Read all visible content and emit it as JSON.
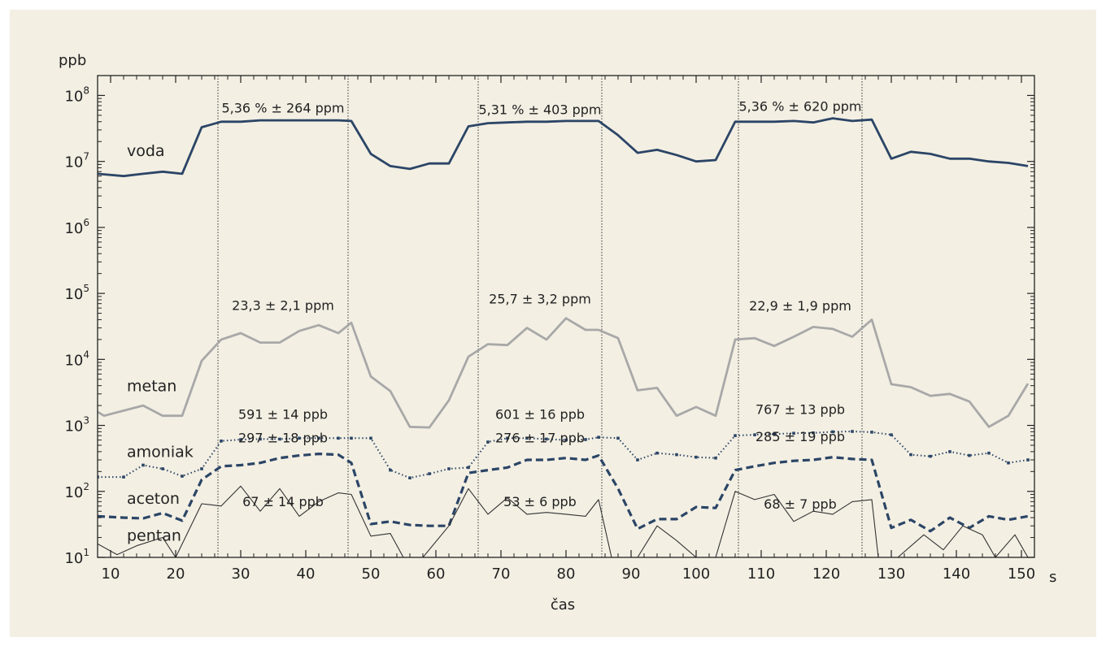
{
  "chart_data": {
    "type": "line",
    "title": "",
    "xlabel": "čas",
    "xunit": "s",
    "ylabel": "ppb",
    "yscale": "log",
    "xlim": [
      8,
      152
    ],
    "ylim": [
      10,
      200000000
    ],
    "xticks": [
      10,
      20,
      30,
      40,
      50,
      60,
      70,
      80,
      90,
      100,
      110,
      120,
      130,
      140,
      150
    ],
    "yticks": [
      {
        "value": 10,
        "base": "10",
        "exp": "1"
      },
      {
        "value": 100,
        "base": "10",
        "exp": "2"
      },
      {
        "value": 1000,
        "base": "10",
        "exp": "3"
      },
      {
        "value": 10000,
        "base": "10",
        "exp": "4"
      },
      {
        "value": 100000,
        "base": "10",
        "exp": "5"
      },
      {
        "value": 1000000,
        "base": "10",
        "exp": "6"
      },
      {
        "value": 10000000,
        "base": "10",
        "exp": "7"
      },
      {
        "value": 100000000,
        "base": "10",
        "exp": "8"
      }
    ],
    "grid": false,
    "vlines": [
      26.5,
      46.5,
      66.5,
      85.5,
      106.5,
      125.5
    ],
    "series": [
      {
        "name": "voda",
        "color": "#2b4566",
        "style": "solid-thick",
        "label_x": 11,
        "label_y": 12000000,
        "x": [
          8,
          12,
          15,
          18,
          21,
          24,
          27,
          30,
          33,
          36,
          39,
          42,
          45,
          47,
          50,
          53,
          56,
          59,
          62,
          65,
          68,
          71,
          74,
          77,
          80,
          83,
          85,
          88,
          91,
          94,
          97,
          100,
          103,
          106,
          109,
          112,
          115,
          118,
          121,
          124,
          127,
          130,
          133,
          136,
          139,
          142,
          145,
          148,
          151
        ],
        "y": [
          6500000,
          6000000,
          6500000,
          7000000,
          6500000,
          33000000,
          40000000,
          40000000,
          42000000,
          42000000,
          42000000,
          42000000,
          42000000,
          41000000,
          13000000,
          8500000,
          7700000,
          9300000,
          9300000,
          34000000,
          38000000,
          39000000,
          40000000,
          40000000,
          41000000,
          41000000,
          41000000,
          25000000,
          13500000,
          15000000,
          12500000,
          10000000,
          10500000,
          40000000,
          40000000,
          40000000,
          41000000,
          39000000,
          45000000,
          41000000,
          43000000,
          11000000,
          14000000,
          13000000,
          11000000,
          11000000,
          10000000,
          9500000,
          8500000
        ]
      },
      {
        "name": "metan",
        "color": "#a8a8a8",
        "style": "solid-gray",
        "label_x": 11,
        "label_y": 3300,
        "x": [
          8,
          9,
          15,
          18,
          21,
          24,
          27,
          30,
          33,
          36,
          39,
          42,
          45,
          47,
          50,
          53,
          56,
          59,
          62,
          65,
          68,
          71,
          74,
          77,
          80,
          83,
          85,
          88,
          91,
          94,
          97,
          100,
          103,
          106,
          109,
          112,
          115,
          118,
          121,
          124,
          127,
          130,
          133,
          136,
          139,
          142,
          145,
          148,
          151
        ],
        "y": [
          1600,
          1400,
          2000,
          1400,
          1400,
          9500,
          20000,
          25000,
          18000,
          18000,
          27000,
          33000,
          25000,
          36000,
          5500,
          3300,
          950,
          930,
          2400,
          11000,
          17000,
          16500,
          30000,
          20000,
          42000,
          28000,
          28000,
          21000,
          3400,
          3700,
          1400,
          1900,
          1400,
          20000,
          21000,
          16000,
          22000,
          31000,
          29000,
          22000,
          40000,
          4200,
          3800,
          2800,
          3000,
          2300,
          950,
          1400,
          4300
        ]
      },
      {
        "name": "amoniak",
        "color": "#2b4566",
        "style": "dotted",
        "label_x": 11,
        "label_y": 330,
        "x": [
          8,
          12,
          15,
          18,
          21,
          24,
          27,
          30,
          33,
          36,
          39,
          42,
          45,
          47,
          50,
          53,
          56,
          59,
          62,
          65,
          68,
          71,
          74,
          77,
          80,
          83,
          85,
          88,
          91,
          94,
          97,
          100,
          103,
          106,
          109,
          112,
          115,
          118,
          121,
          124,
          127,
          130,
          133,
          136,
          139,
          142,
          145,
          148,
          151
        ],
        "y": [
          165,
          165,
          250,
          220,
          170,
          220,
          580,
          610,
          620,
          620,
          640,
          640,
          640,
          640,
          640,
          210,
          160,
          185,
          220,
          230,
          560,
          640,
          640,
          620,
          600,
          610,
          660,
          640,
          300,
          380,
          360,
          330,
          320,
          700,
          720,
          740,
          760,
          770,
          800,
          810,
          790,
          720,
          360,
          340,
          400,
          350,
          380,
          270,
          300
        ]
      },
      {
        "name": "aceton",
        "color": "#2b4566",
        "style": "dashed-thick",
        "label_x": 11,
        "label_y": 65,
        "x": [
          8,
          12,
          15,
          18,
          21,
          24,
          27,
          30,
          33,
          36,
          39,
          42,
          45,
          47,
          50,
          53,
          56,
          59,
          62,
          65,
          68,
          71,
          74,
          77,
          80,
          83,
          85,
          88,
          91,
          94,
          97,
          100,
          103,
          106,
          109,
          112,
          115,
          118,
          121,
          124,
          127,
          130,
          133,
          136,
          139,
          142,
          145,
          148,
          151
        ],
        "y": [
          42,
          40,
          39,
          47,
          36,
          150,
          240,
          250,
          270,
          320,
          350,
          370,
          360,
          270,
          32,
          35,
          31,
          30,
          30,
          190,
          210,
          230,
          300,
          300,
          320,
          300,
          350,
          110,
          27,
          38,
          38,
          58,
          56,
          210,
          240,
          270,
          290,
          300,
          330,
          310,
          300,
          28,
          37,
          25,
          40,
          28,
          42,
          37,
          42
        ]
      },
      {
        "name": "pentan",
        "color": "#333333",
        "style": "thin",
        "label_x": 11,
        "label_y": 18,
        "x": [
          8,
          11,
          14,
          18,
          20,
          24,
          27,
          30,
          33,
          36,
          39,
          42,
          45,
          47,
          50,
          53,
          55,
          58,
          62,
          65,
          68,
          71,
          74,
          77,
          80,
          83,
          85,
          87,
          89,
          91,
          94,
          97,
          100,
          103,
          106,
          109,
          112,
          115,
          118,
          121,
          124,
          127,
          128,
          131,
          135,
          138,
          141,
          144,
          146,
          149,
          151
        ],
        "y": [
          16,
          11,
          15,
          20,
          10,
          65,
          60,
          120,
          50,
          110,
          42,
          70,
          95,
          90,
          21,
          23,
          10,
          10,
          30,
          110,
          45,
          80,
          45,
          48,
          45,
          42,
          75,
          10,
          10,
          10,
          30,
          18,
          10,
          10,
          100,
          75,
          90,
          35,
          50,
          45,
          70,
          75,
          10,
          10,
          22,
          13,
          30,
          22,
          10,
          22,
          10
        ]
      }
    ],
    "annotations": [
      {
        "text": "5,36 % ± 264 ppm",
        "x": 36.5,
        "y": 55000000
      },
      {
        "text": "5,31 % ± 403 ppm",
        "x": 76,
        "y": 52000000
      },
      {
        "text": "5,36 % ± 620 ppm",
        "x": 116,
        "y": 58000000
      },
      {
        "text": "23,3 ± 2,1 ppm",
        "x": 36.5,
        "y": 56000
      },
      {
        "text": "25,7 ± 3,2 ppm",
        "x": 76,
        "y": 70000
      },
      {
        "text": "22,9 ± 1,9 ppm",
        "x": 116,
        "y": 55000
      },
      {
        "text": "591 ± 14 ppb",
        "x": 36.5,
        "y": 1250
      },
      {
        "text": "601 ± 16 ppb",
        "x": 76,
        "y": 1250
      },
      {
        "text": "767 ± 13 ppb",
        "x": 116,
        "y": 1500
      },
      {
        "text": "297 ± 18 ppb",
        "x": 36.5,
        "y": 550
      },
      {
        "text": "276 ± 17 ppb",
        "x": 76,
        "y": 550
      },
      {
        "text": "285 ± 19 ppb",
        "x": 116,
        "y": 580
      },
      {
        "text": "67 ± 14 ppb",
        "x": 36.5,
        "y": 60
      },
      {
        "text": "53 ± 6 ppb",
        "x": 76,
        "y": 60
      },
      {
        "text": "68 ± 7 ppb",
        "x": 116,
        "y": 55
      }
    ]
  }
}
